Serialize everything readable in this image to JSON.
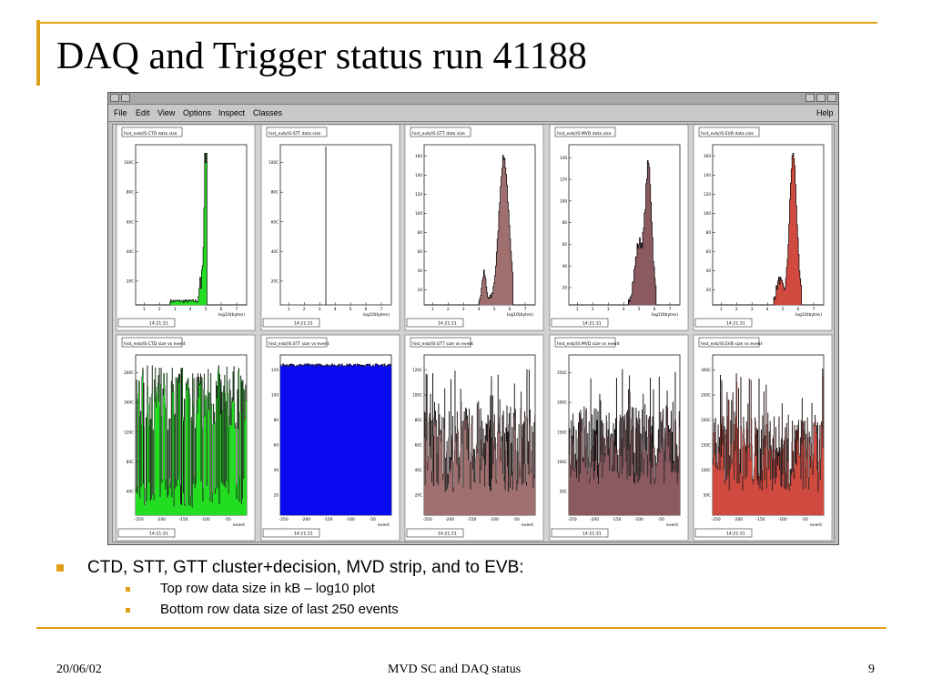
{
  "slide": {
    "title": "DAQ and Trigger status run 41188",
    "bullet": "CTD, STT, GTT cluster+decision, MVD strip, and to EVB:",
    "sub_bullets": [
      "Top row data size in kB – log10 plot",
      "Bottom row data size of last 250 events"
    ],
    "footer_date": "20/06/02",
    "footer_center": "MVD SC and DAQ status",
    "footer_page": "9"
  },
  "window": {
    "menu": [
      "File",
      "Edit",
      "View",
      "Options",
      "Inspect",
      "Classes"
    ],
    "help": "Help"
  },
  "panels": {
    "stats_time": "14:21:31",
    "top": [
      {
        "label": "hist_evb//S:CTD data size",
        "color": "#22dd22",
        "kind": "ctd",
        "yticks": [
          "100C",
          "80C",
          "60C",
          "40C",
          "20C"
        ],
        "xlabel": "log10(bytes)",
        "xticks": [
          "1",
          "2",
          "3",
          "4",
          "5",
          "6",
          "7"
        ]
      },
      {
        "label": "hist_evb//S:STT data size",
        "color": "#000000",
        "kind": "stt",
        "yticks": [
          "100C",
          "80C",
          "60C",
          "40C",
          "20C"
        ],
        "xlabel": "log10(bytes)",
        "xticks": [
          "1",
          "2",
          "3",
          "4",
          "5",
          "6",
          "7"
        ]
      },
      {
        "label": "hist_evb//S:GTT data size",
        "color": "#a07070",
        "kind": "gtt",
        "yticks": [
          "160",
          "140",
          "120",
          "100",
          "80",
          "60",
          "40",
          "20"
        ],
        "xlabel": "log10(bytes)",
        "xticks": [
          "1",
          "2",
          "3",
          "4",
          "5",
          "6",
          "7"
        ]
      },
      {
        "label": "hist_evb//S:MVD data size",
        "color": "#8a5a60",
        "kind": "mvd",
        "yticks": [
          "140",
          "120",
          "100",
          "80",
          "60",
          "40",
          "20"
        ],
        "xlabel": "log10(bytes)",
        "xticks": [
          "1",
          "2",
          "3",
          "4",
          "5",
          "6",
          "7"
        ]
      },
      {
        "label": "hist_evb//S:EVB data size",
        "color": "#d04a40",
        "kind": "evb",
        "yticks": [
          "160",
          "140",
          "120",
          "100",
          "80",
          "60",
          "40",
          "20"
        ],
        "xlabel": "log10(bytes)",
        "xticks": [
          "1",
          "2",
          "3",
          "4",
          "5",
          "6",
          "7"
        ]
      }
    ],
    "bottom": [
      {
        "label": "hist_evb//S:CTD size vs event",
        "color": "#22dd22",
        "kind": "ctd",
        "yticks": [
          "200C",
          "160C",
          "120C",
          "80C",
          "40C"
        ],
        "xlabel": "event",
        "xticks": [
          "-250",
          "-200",
          "-150",
          "-100",
          "-50"
        ]
      },
      {
        "label": "hist_evb//S:STT size vs event",
        "color": "#0a0af0",
        "kind": "stt",
        "yticks": [
          "120",
          "100",
          "80",
          "60",
          "40",
          "20"
        ],
        "xlabel": "event",
        "xticks": [
          "-250",
          "-200",
          "-150",
          "-100",
          "-50"
        ]
      },
      {
        "label": "hist_evb//S:GTT size vs event",
        "color": "#a07070",
        "kind": "gtt",
        "yticks": [
          "120C",
          "100C",
          "80C",
          "60C",
          "40C",
          "20C"
        ],
        "xlabel": "event",
        "xticks": [
          "-250",
          "-200",
          "-150",
          "-100",
          "-50"
        ]
      },
      {
        "label": "hist_evb//S:MVD size vs event",
        "color": "#8a5a60",
        "kind": "mvd",
        "yticks": [
          "250C",
          "200C",
          "150C",
          "100C",
          "50C"
        ],
        "xlabel": "event",
        "xticks": [
          "-250",
          "-200",
          "-150",
          "-100",
          "-50"
        ]
      },
      {
        "label": "hist_evb//S:EVB size vs event",
        "color": "#d04a40",
        "kind": "evb",
        "yticks": [
          "300C",
          "250C",
          "200C",
          "150C",
          "100C",
          "50C"
        ],
        "xlabel": "event",
        "xticks": [
          "-250",
          "-200",
          "-150",
          "-100",
          "-50"
        ]
      }
    ]
  }
}
